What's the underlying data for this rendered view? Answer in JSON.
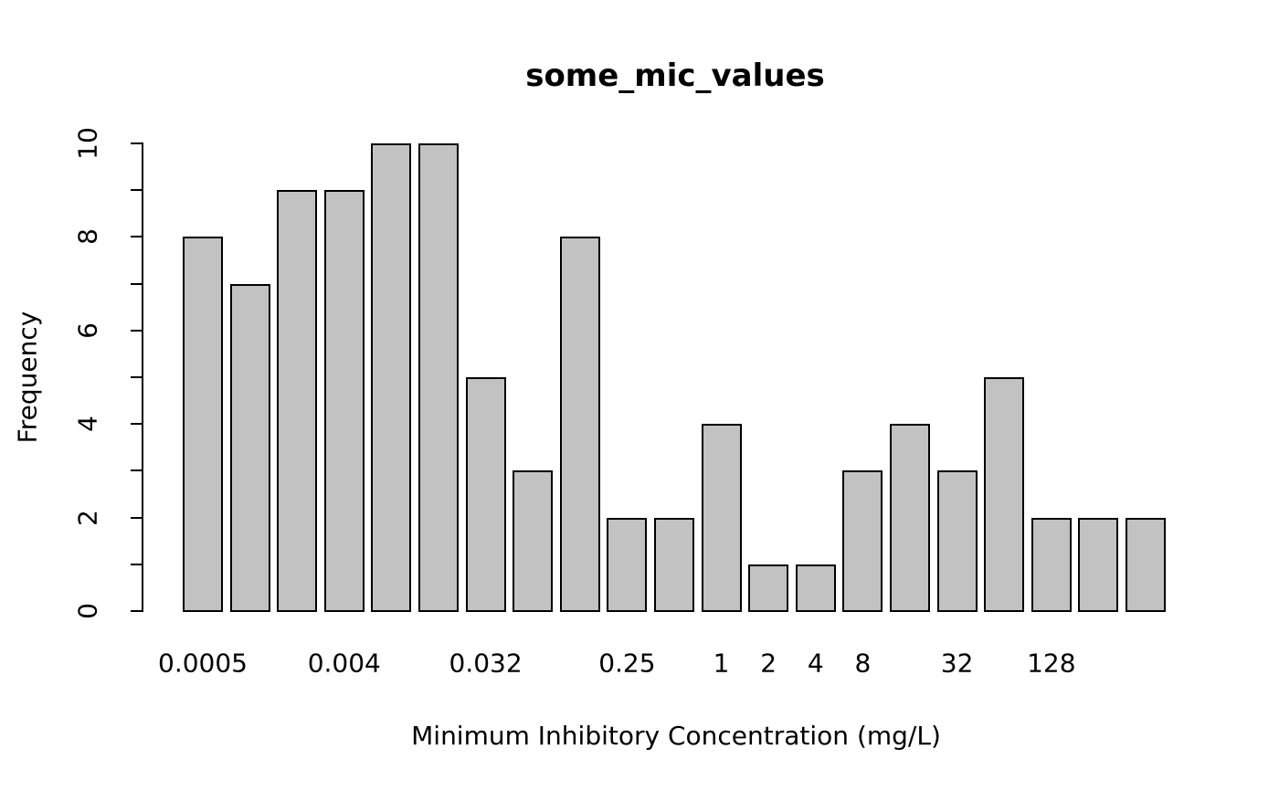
{
  "figure": {
    "background": "#FFFFFF"
  },
  "chart_data": {
    "type": "bar",
    "title": "some_mic_values",
    "xlabel": "Minimum Inhibitory Concentration (mg/L)",
    "ylabel": "Frequency",
    "n_bars": 21,
    "values": [
      8,
      7,
      9,
      9,
      10,
      10,
      5,
      3,
      8,
      2,
      2,
      4,
      1,
      1,
      3,
      4,
      3,
      5,
      2,
      2,
      2
    ],
    "x_tick_labels": [
      {
        "bar_index": 0,
        "label": "0.0005"
      },
      {
        "bar_index": 3,
        "label": "0.004"
      },
      {
        "bar_index": 6,
        "label": "0.032"
      },
      {
        "bar_index": 9,
        "label": "0.25"
      },
      {
        "bar_index": 11,
        "label": "1"
      },
      {
        "bar_index": 12,
        "label": "2"
      },
      {
        "bar_index": 13,
        "label": "4"
      },
      {
        "bar_index": 14,
        "label": "8"
      },
      {
        "bar_index": 16,
        "label": "32"
      },
      {
        "bar_index": 18,
        "label": "128"
      }
    ],
    "y_ticks": [
      0,
      1,
      2,
      3,
      4,
      5,
      6,
      7,
      8,
      9,
      10
    ],
    "y_labeled_ticks": [
      {
        "value": 0,
        "label": "0"
      },
      {
        "value": 2,
        "label": "2"
      },
      {
        "value": 4,
        "label": "4"
      },
      {
        "value": 6,
        "label": "6"
      },
      {
        "value": 8,
        "label": "8"
      },
      {
        "value": 10,
        "label": "10"
      }
    ],
    "ylim": [
      0,
      10
    ],
    "grid": false,
    "legend_position": null,
    "colors": {
      "bar_fill": "#C2C2C2",
      "bar_border": "#000000",
      "axis": "#000000",
      "text": "#000000"
    }
  }
}
